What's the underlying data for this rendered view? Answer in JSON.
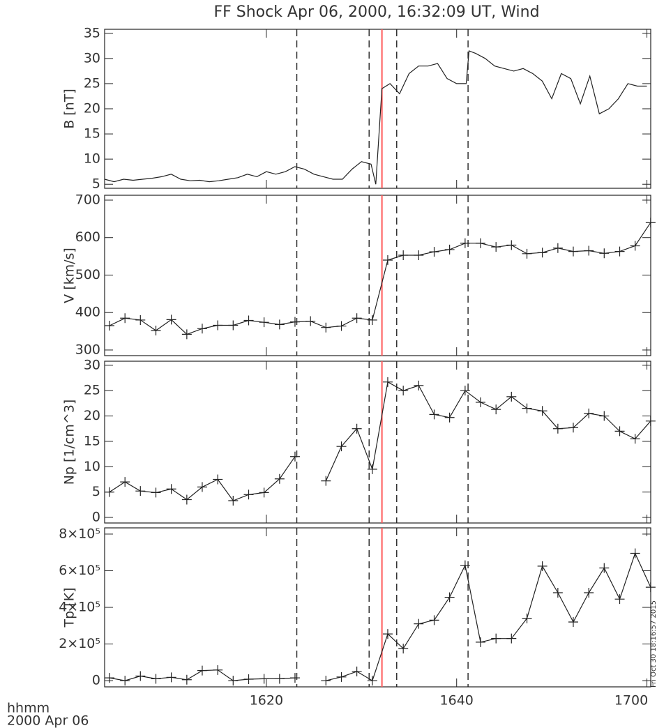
{
  "chart_data": [
    {
      "type": "line",
      "title": "FF Shock Apr 06, 2000, 16:32:09 UT, Wind",
      "ylabel": "B [nT]",
      "color": "#222",
      "x": [
        963,
        964,
        965,
        966,
        967,
        968,
        969,
        970,
        971,
        972,
        973,
        974,
        975,
        976,
        977,
        978,
        979,
        980,
        981,
        982,
        983,
        984,
        985,
        986,
        987,
        988,
        989,
        990,
        991,
        991.5,
        992.15,
        993,
        994,
        995,
        996,
        997,
        998,
        999,
        1000,
        1001,
        1001.3,
        1002,
        1003,
        1004,
        1005,
        1006,
        1007,
        1008,
        1009,
        1010,
        1011,
        1012,
        1013,
        1014,
        1015,
        1016,
        1017,
        1018,
        1019,
        1020
      ],
      "values": [
        6,
        5.5,
        6,
        5.8,
        6,
        6.2,
        6.5,
        7,
        6,
        5.7,
        5.8,
        5.5,
        5.7,
        6,
        6.3,
        7,
        6.5,
        7.5,
        7,
        7.5,
        8.5,
        8,
        7,
        6.5,
        6,
        6,
        8,
        9.5,
        9,
        5,
        24,
        25,
        23,
        27,
        28.5,
        28.5,
        29,
        26,
        25,
        25,
        31.5,
        31,
        30,
        28.5,
        28,
        27.5,
        28,
        27,
        25.5,
        22,
        27,
        26,
        21,
        26.5,
        19,
        20,
        22,
        25,
        24.5,
        24.5
      ],
      "xlim": [
        963,
        1020.4
      ],
      "xticks": [
        {
          "value": 980,
          "label": "1620"
        },
        {
          "value": 1000,
          "label": "1640"
        },
        {
          "value": 1020,
          "label": "1700"
        }
      ],
      "ylim": [
        4.2,
        35.8
      ],
      "yticks": [
        5,
        10,
        15,
        20,
        25,
        30,
        35
      ]
    },
    {
      "type": "line",
      "ylabel": "V [km/s]",
      "color": "#222",
      "marker": "+",
      "x": [
        963.51,
        965.14,
        966.76,
        968.39,
        970.01,
        971.64,
        973.26,
        974.89,
        976.51,
        978.14,
        979.76,
        981.39,
        983.01,
        984.64,
        986.26,
        987.89,
        989.51,
        991.14,
        992.76,
        994.39,
        996.01,
        997.64,
        999.26,
        1000.89,
        1002.51,
        1004.14,
        1005.76,
        1007.39,
        1009.01,
        1010.64,
        1012.26,
        1013.89,
        1015.51,
        1017.14,
        1018.76,
        1020.39
      ],
      "values": [
        365,
        385,
        380,
        352,
        381,
        342,
        357,
        366,
        366,
        379,
        374,
        368,
        375,
        377,
        360,
        364,
        385,
        380,
        540,
        553,
        553,
        562,
        568,
        585,
        585,
        575,
        580,
        557,
        560,
        572,
        563,
        565,
        558,
        563,
        578,
        640
      ],
      "xlim": [
        963,
        1020.4
      ],
      "xticks": [
        {
          "value": 980,
          "label": "1620"
        },
        {
          "value": 1000,
          "label": "1640"
        },
        {
          "value": 1020,
          "label": "1700"
        }
      ],
      "ylim": [
        285,
        713
      ],
      "yticks": [
        300,
        400,
        500,
        600,
        700
      ]
    },
    {
      "type": "line",
      "ylabel": "Np [1/cm^3]",
      "color": "#222",
      "marker": "+",
      "x": [
        963.51,
        965.14,
        966.76,
        968.39,
        970.01,
        971.64,
        973.26,
        974.89,
        976.51,
        978.14,
        979.76,
        981.39,
        983.01,
        984.64,
        986.26,
        987.89,
        989.51,
        991.14,
        992.76,
        994.39,
        996.01,
        997.64,
        999.26,
        1000.89,
        1002.51,
        1004.14,
        1005.76,
        1007.39,
        1009.01,
        1010.64,
        1012.26,
        1013.89,
        1015.51,
        1017.14,
        1018.76,
        1020.39
      ],
      "values": [
        5,
        7,
        5.2,
        4.9,
        5.6,
        3.5,
        6,
        7.5,
        3.3,
        4.5,
        4.9,
        7.6,
        12,
        null,
        7.2,
        14,
        17.5,
        9.5,
        26.7,
        25,
        26,
        20.3,
        19.7,
        25,
        22.7,
        21.3,
        23.8,
        21.5,
        21,
        17.5,
        17.7,
        20.5,
        20,
        17,
        15.5,
        19
      ],
      "xlim": [
        963,
        1020.4
      ],
      "xticks": [
        {
          "value": 980,
          "label": "1620"
        },
        {
          "value": 1000,
          "label": "1640"
        },
        {
          "value": 1020,
          "label": "1700"
        }
      ],
      "ylim": [
        -1.1,
        30.8
      ],
      "yticks": [
        0,
        5,
        10,
        15,
        20,
        25,
        30
      ]
    },
    {
      "type": "line",
      "ylabel": "Tp [K]",
      "color": "#222",
      "marker": "+",
      "x": [
        963.51,
        965.14,
        966.76,
        968.39,
        970.01,
        971.64,
        973.26,
        974.89,
        976.51,
        978.14,
        979.76,
        981.39,
        983.01,
        984.64,
        986.26,
        987.89,
        989.51,
        991.14,
        992.76,
        994.39,
        996.01,
        997.64,
        999.26,
        1000.89,
        1002.51,
        1004.14,
        1005.76,
        1007.39,
        1009.01,
        1010.64,
        1012.26,
        1013.89,
        1015.51,
        1017.14,
        1018.76,
        1020.39
      ],
      "values": [
        15000,
        0,
        25000,
        10000,
        18000,
        5000,
        55000,
        58000,
        0,
        8000,
        10000,
        10000,
        15000,
        null,
        0,
        20000,
        50000,
        0,
        255000,
        175000,
        310000,
        330000,
        455000,
        630000,
        210000,
        230000,
        230000,
        340000,
        625000,
        480000,
        320000,
        480000,
        615000,
        445000,
        695000,
        510000
      ],
      "xlim": [
        963,
        1020.4
      ],
      "xticks": [
        {
          "value": 980,
          "label": "1620"
        },
        {
          "value": 1000,
          "label": "1640"
        },
        {
          "value": 1020,
          "label": "1700"
        }
      ],
      "ylim": [
        -34000,
        834000
      ],
      "yticks": [
        0,
        {
          "value": 200000,
          "label": "2×10⁵"
        },
        {
          "value": 400000,
          "label": "4×10⁵"
        },
        {
          "value": 600000,
          "label": "6×10⁵"
        },
        {
          "value": 800000,
          "label": "8×10⁵"
        }
      ]
    }
  ],
  "markers": {
    "dashed_times": [
      983.2,
      990.8,
      993.7,
      1001.2
    ],
    "shock_time": 992.15,
    "shock_color": "#ff5a5a",
    "dashed_color": "#222"
  },
  "footer": {
    "x_unit": "hhmm",
    "date": "2000 Apr 06",
    "timestamp": "Fri Oct 30 18:16:57 2015"
  }
}
